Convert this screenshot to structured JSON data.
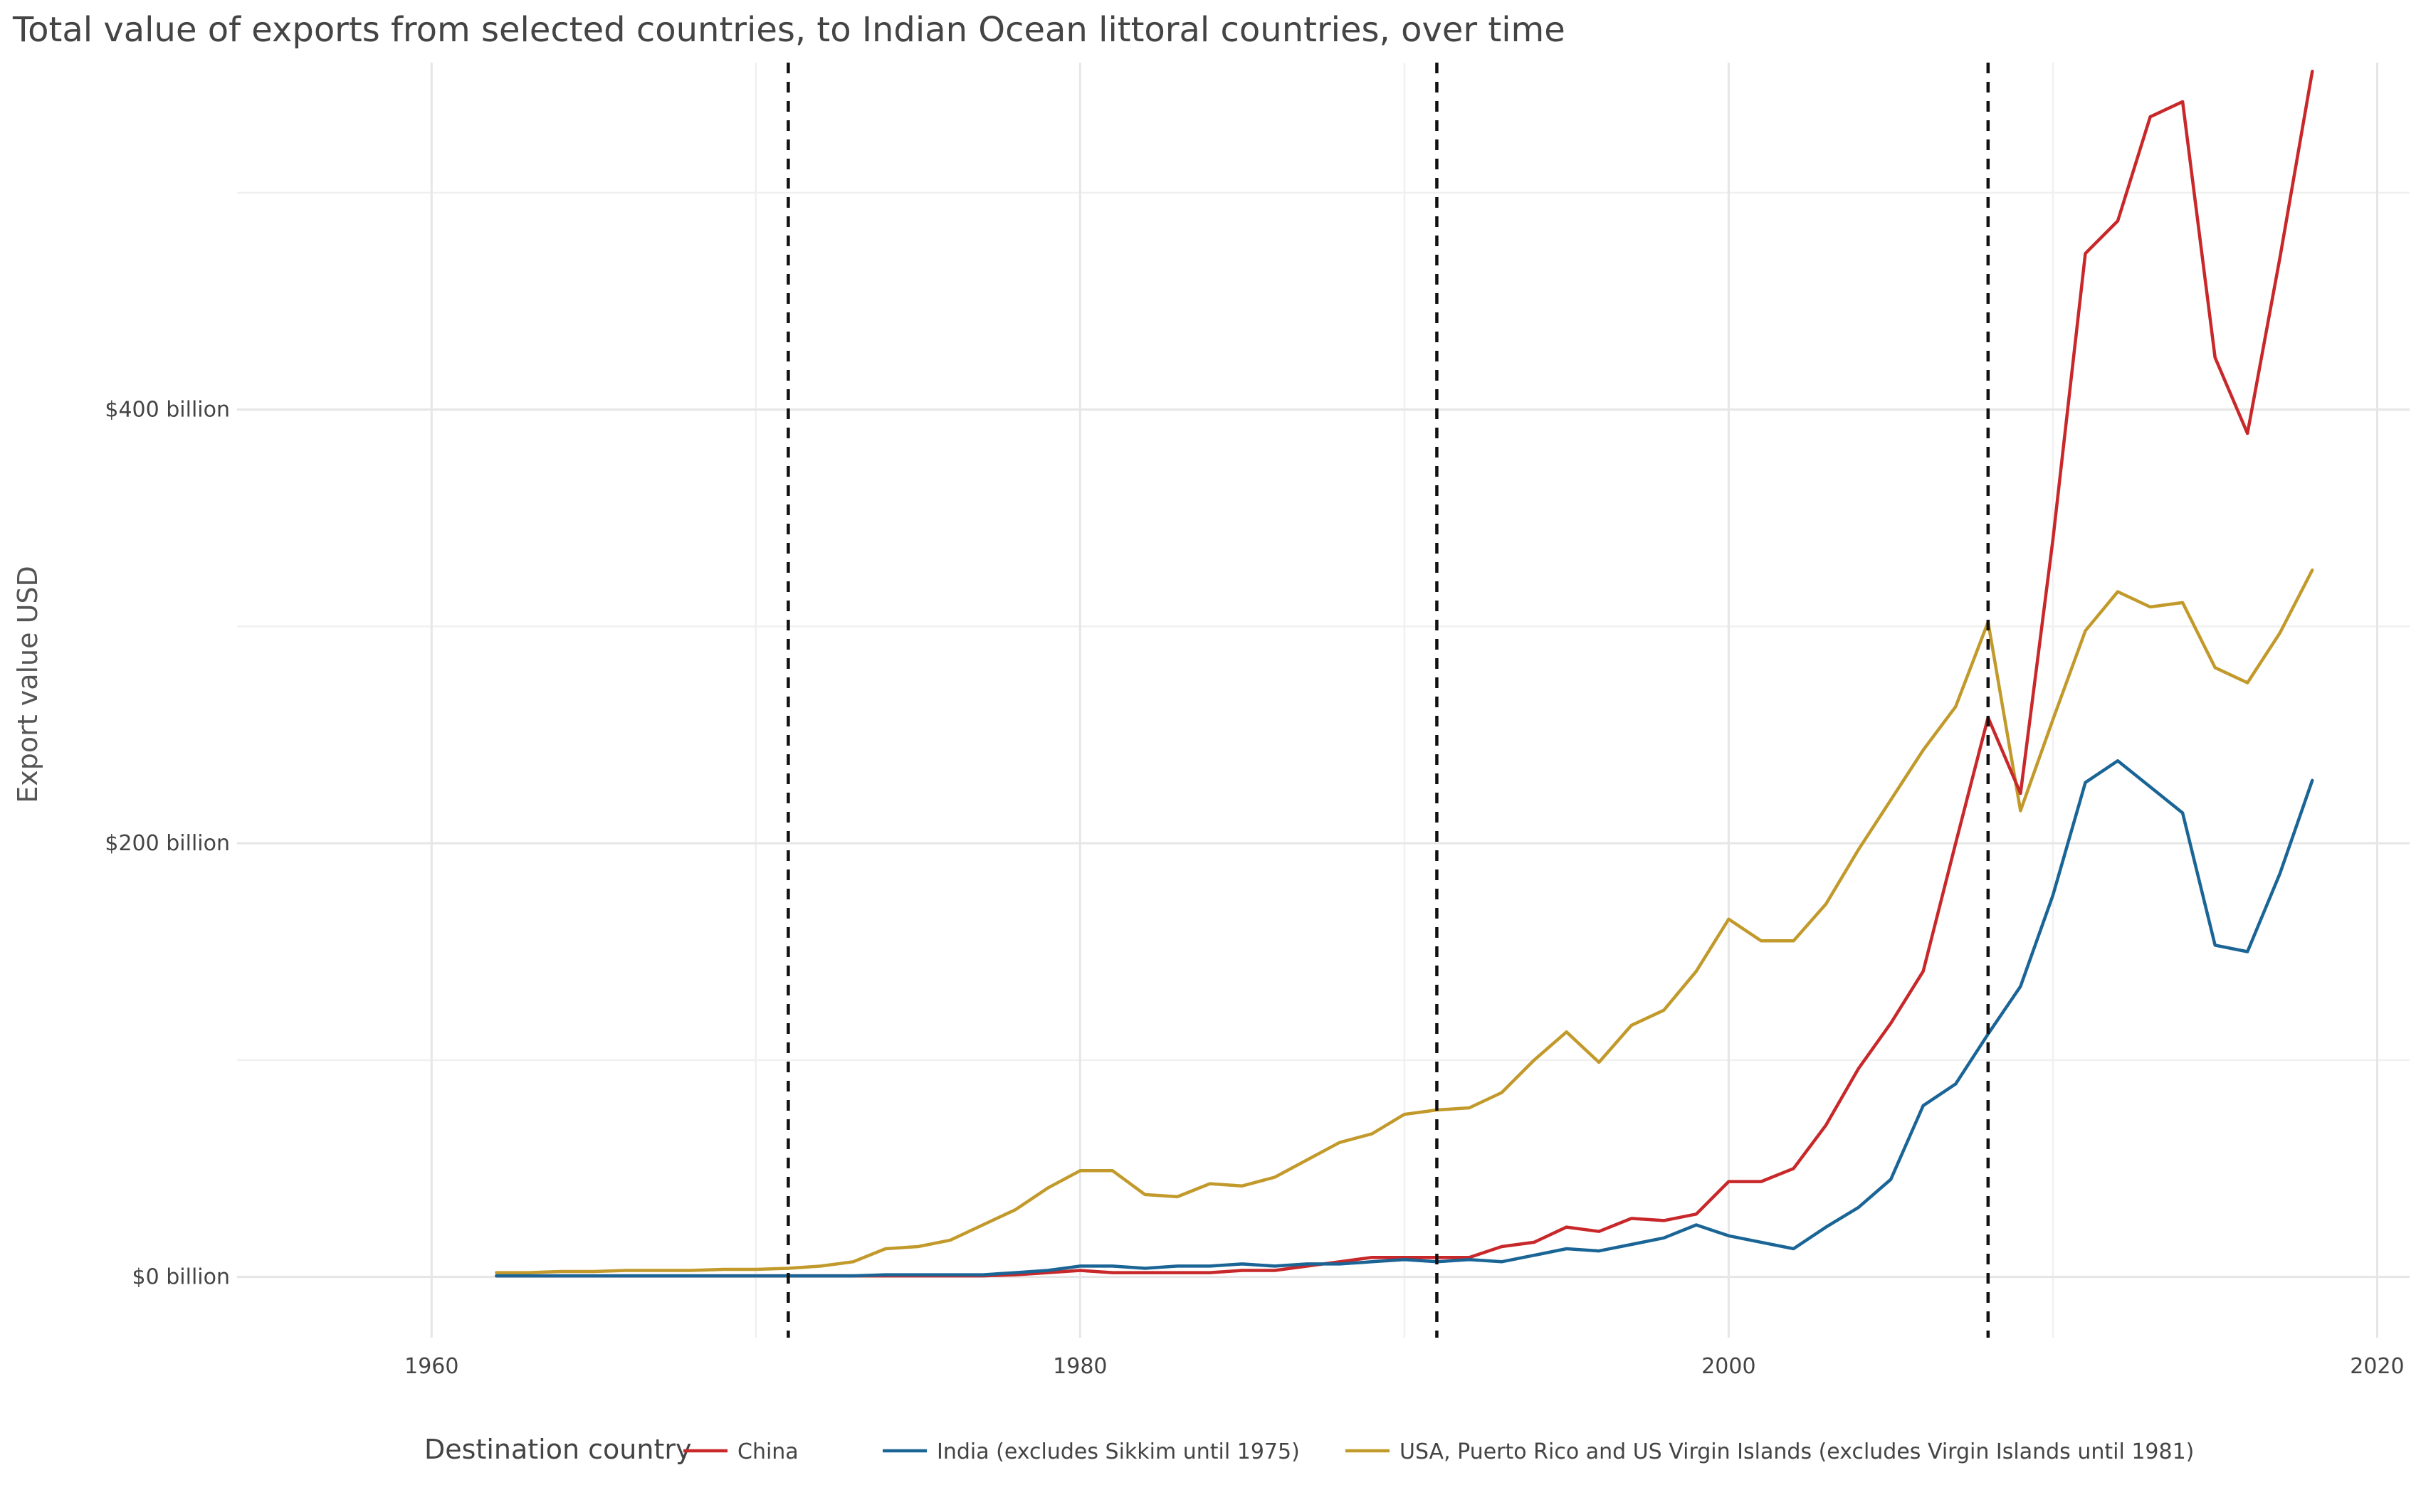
{
  "chart_data": {
    "type": "line",
    "title": "Total value of exports from selected countries, to Indian Ocean littoral countries, over time",
    "xlabel": "",
    "ylabel": "Export value USD",
    "xlim": [
      1954,
      2021
    ],
    "ylim": [
      -28,
      560
    ],
    "x_ticks": [
      1960,
      1980,
      2000,
      2020
    ],
    "x_tick_labels": [
      "1960",
      "1980",
      "2000",
      "2020"
    ],
    "x_minor": [
      1970,
      1990,
      2010
    ],
    "y_ticks": [
      0,
      200,
      400
    ],
    "y_tick_labels": [
      "$0 billion",
      "$200 billion",
      "$400 billion"
    ],
    "y_minor": [
      100,
      300,
      500
    ],
    "grid": true,
    "vertical_reference_lines": [
      1971,
      1991,
      2008
    ],
    "legend": {
      "title": "Destination country",
      "position": "bottom"
    },
    "series": [
      {
        "name": "China",
        "color": "#c8282a",
        "x": [
          1962,
          1963,
          1964,
          1965,
          1966,
          1967,
          1968,
          1969,
          1970,
          1971,
          1972,
          1973,
          1974,
          1975,
          1976,
          1977,
          1978,
          1979,
          1980,
          1981,
          1982,
          1983,
          1984,
          1985,
          1986,
          1987,
          1988,
          1989,
          1990,
          1991,
          1992,
          1993,
          1994,
          1995,
          1996,
          1997,
          1998,
          1999,
          2000,
          2001,
          2002,
          2003,
          2004,
          2005,
          2006,
          2007,
          2008,
          2009,
          2010,
          2011,
          2012,
          2013,
          2014,
          2015,
          2016,
          2017,
          2018
        ],
        "values": [
          0.5,
          0.5,
          0.5,
          0.5,
          0.5,
          0.5,
          0.5,
          0.5,
          0.5,
          0.5,
          0.5,
          0.5,
          0.5,
          0.5,
          0.5,
          0.5,
          1,
          2,
          3,
          2,
          2,
          2,
          2,
          3,
          3,
          5,
          7,
          9,
          9,
          9,
          9,
          14,
          16,
          23,
          21,
          27,
          26,
          29,
          44,
          44,
          50,
          70,
          96,
          117,
          141,
          200,
          258,
          223,
          340,
          472,
          487,
          535,
          542,
          424,
          389,
          470,
          556
        ]
      },
      {
        "name": "India (excludes Sikkim until 1975)",
        "color": "#1a6596",
        "x": [
          1962,
          1963,
          1964,
          1965,
          1966,
          1967,
          1968,
          1969,
          1970,
          1971,
          1972,
          1973,
          1974,
          1975,
          1976,
          1977,
          1978,
          1979,
          1980,
          1981,
          1982,
          1983,
          1984,
          1985,
          1986,
          1987,
          1988,
          1989,
          1990,
          1991,
          1992,
          1993,
          1994,
          1995,
          1996,
          1997,
          1998,
          1999,
          2000,
          2001,
          2002,
          2003,
          2004,
          2005,
          2006,
          2007,
          2008,
          2009,
          2010,
          2011,
          2012,
          2013,
          2014,
          2015,
          2016,
          2017,
          2018
        ],
        "values": [
          0.5,
          0.5,
          0.5,
          0.5,
          0.5,
          0.5,
          0.5,
          0.5,
          0.5,
          0.5,
          0.5,
          0.5,
          1,
          1,
          1,
          1,
          2,
          3,
          5,
          5,
          4,
          5,
          5,
          6,
          5,
          6,
          6,
          7,
          8,
          7,
          8,
          7,
          10,
          13,
          12,
          15,
          18,
          24,
          19,
          16,
          13,
          23,
          32,
          45,
          79,
          89,
          112,
          134,
          176,
          228,
          238,
          226,
          214,
          153,
          150,
          186,
          229
        ]
      },
      {
        "name": "USA, Puerto Rico and US Virgin Islands (excludes Virgin Islands until 1981)",
        "color": "#c29a2b",
        "x": [
          1962,
          1963,
          1964,
          1965,
          1966,
          1967,
          1968,
          1969,
          1970,
          1971,
          1972,
          1973,
          1974,
          1975,
          1976,
          1977,
          1978,
          1979,
          1980,
          1981,
          1982,
          1983,
          1984,
          1985,
          1986,
          1987,
          1988,
          1989,
          1990,
          1991,
          1992,
          1993,
          1994,
          1995,
          1996,
          1997,
          1998,
          1999,
          2000,
          2001,
          2002,
          2003,
          2004,
          2005,
          2006,
          2007,
          2008,
          2009,
          2010,
          2011,
          2012,
          2013,
          2014,
          2015,
          2016,
          2017,
          2018
        ],
        "values": [
          2,
          2,
          2.5,
          2.5,
          3,
          3,
          3,
          3.5,
          3.5,
          4,
          5,
          7,
          13,
          14,
          17,
          24,
          31,
          41,
          49,
          49,
          38,
          37,
          43,
          42,
          46,
          54,
          62,
          66,
          75,
          77,
          78,
          85,
          100,
          113,
          99,
          116,
          123,
          141,
          165,
          155,
          155,
          172,
          197,
          220,
          243,
          263,
          302,
          215,
          257,
          298,
          316,
          309,
          311,
          281,
          274,
          297,
          326
        ]
      }
    ]
  }
}
